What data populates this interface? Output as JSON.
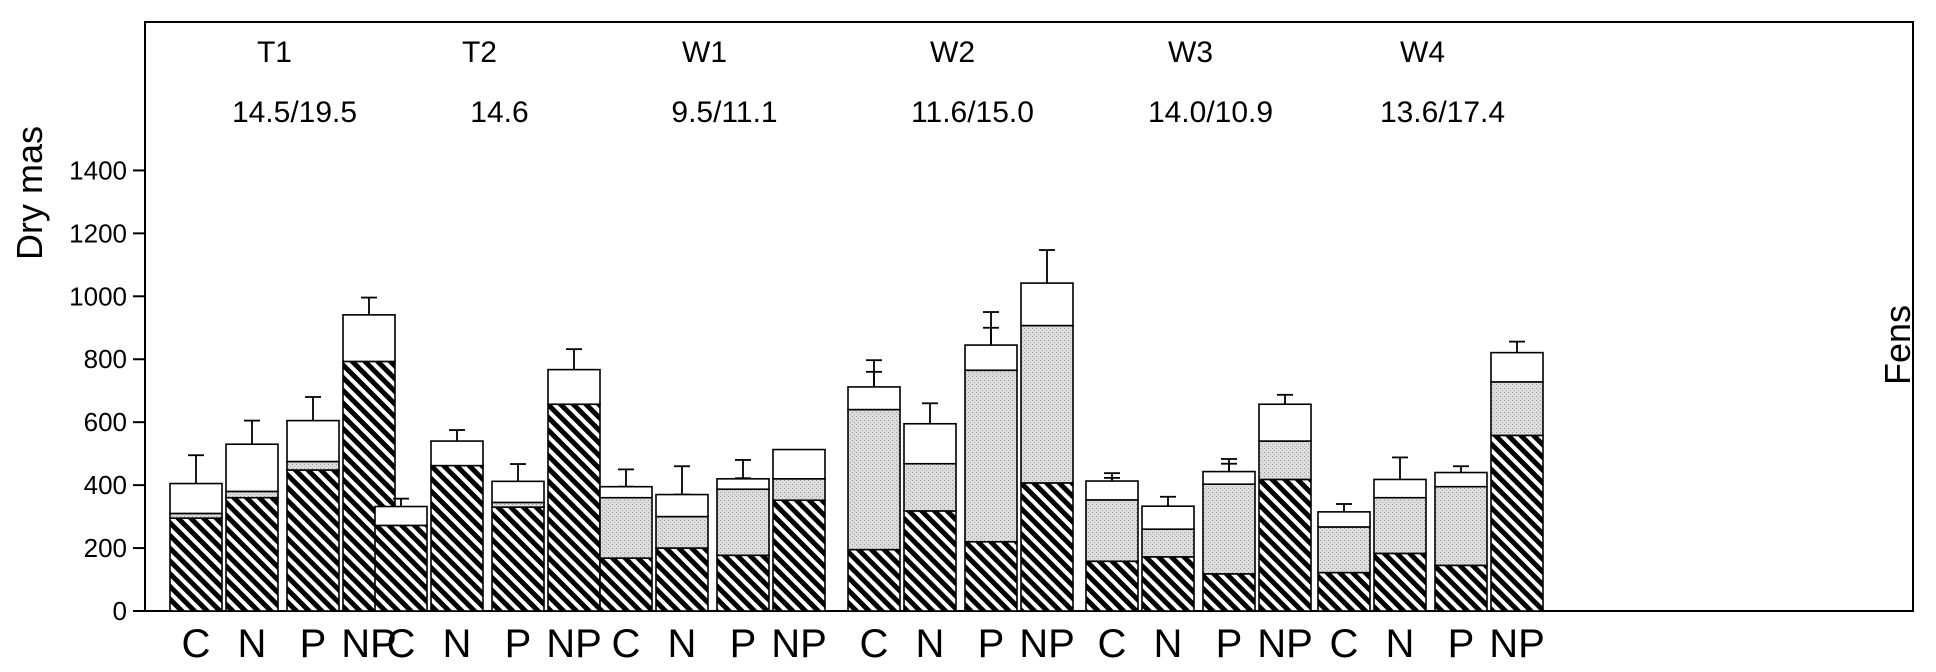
{
  "chart_data": {
    "type": "bar",
    "stacked": true,
    "ylabel": "Dry mas",
    "right_label": "Fens",
    "ylim": [
      0,
      1450
    ],
    "yticks": [
      0,
      200,
      400,
      600,
      800,
      1000,
      1200,
      1400
    ],
    "grid": false,
    "legend": "none",
    "colors": {
      "layer1": "hatched",
      "layer2": "#d4d4d4",
      "layer3": "#ffffff",
      "axis": "#000000"
    },
    "groups": [
      {
        "name": "T1",
        "subtitle": "14.5/19.5",
        "categories": [
          "C",
          "N",
          "P",
          "NP"
        ],
        "bars": [
          {
            "layers": [
              295,
              15,
              95
            ],
            "errors": [
              70,
              0,
              90
            ]
          },
          {
            "layers": [
              360,
              20,
              150
            ],
            "errors": [
              65,
              0,
              75
            ]
          },
          {
            "layers": [
              448,
              27,
              130
            ],
            "errors": [
              55,
              0,
              75
            ]
          },
          {
            "layers": [
              793,
              0,
              148
            ],
            "errors": [
              45,
              0,
              55
            ]
          }
        ]
      },
      {
        "name": "T2",
        "subtitle": "14.6",
        "categories": [
          "C",
          "N",
          "P",
          "NP"
        ],
        "bars": [
          {
            "layers": [
              272,
              0,
              60
            ],
            "errors": [
              25,
              0,
              25
            ]
          },
          {
            "layers": [
              462,
              0,
              78
            ],
            "errors": [
              38,
              0,
              35
            ]
          },
          {
            "layers": [
              330,
              15,
              67
            ],
            "errors": [
              40,
              0,
              55
            ]
          },
          {
            "layers": [
              657,
              0,
              110
            ],
            "errors": [
              55,
              0,
              65
            ]
          }
        ]
      },
      {
        "name": "W1",
        "subtitle": "9.5/11.1",
        "categories": [
          "C",
          "N",
          "P",
          "NP"
        ],
        "bars": [
          {
            "layers": [
              168,
              192,
              35
            ],
            "errors": [
              25,
              35,
              55
            ]
          },
          {
            "layers": [
              200,
              100,
              70
            ],
            "errors": [
              20,
              70,
              90
            ]
          },
          {
            "layers": [
              177,
              210,
              33
            ],
            "errors": [
              25,
              35,
              60
            ]
          },
          {
            "layers": [
              352,
              68,
              93
            ],
            "errors": [
              15,
              20,
              0
            ]
          }
        ]
      },
      {
        "name": "W2",
        "subtitle": "11.6/15.0",
        "categories": [
          "C",
          "N",
          "P",
          "NP"
        ],
        "bars": [
          {
            "layers": [
              195,
              445,
              72
            ],
            "errors": [
              45,
              120,
              85
            ]
          },
          {
            "layers": [
              318,
              150,
              127
            ],
            "errors": [
              30,
              40,
              65
            ]
          },
          {
            "layers": [
              220,
              545,
              80
            ],
            "errors": [
              25,
              135,
              105
            ]
          },
          {
            "layers": [
              407,
              500,
              135
            ],
            "errors": [
              70,
              115,
              105
            ]
          }
        ]
      },
      {
        "name": "W3",
        "subtitle": "14.0/10.9",
        "categories": [
          "C",
          "N",
          "P",
          "NP"
        ],
        "bars": [
          {
            "layers": [
              158,
              195,
              60
            ],
            "errors": [
              10,
              70,
              25
            ]
          },
          {
            "layers": [
              172,
              88,
              73
            ],
            "errors": [
              10,
              30,
              30
            ]
          },
          {
            "layers": [
              118,
              285,
              40
            ],
            "errors": [
              10,
              65,
              40
            ]
          },
          {
            "layers": [
              418,
              122,
              117
            ],
            "errors": [
              20,
              65,
              30
            ]
          }
        ]
      },
      {
        "name": "W4",
        "subtitle": "13.6/17.4",
        "categories": [
          "C",
          "N",
          "P",
          "NP"
        ],
        "bars": [
          {
            "layers": [
              122,
              145,
              48
            ],
            "errors": [
              15,
              30,
              25
            ]
          },
          {
            "layers": [
              183,
              177,
              58
            ],
            "errors": [
              40,
              40,
              70
            ]
          },
          {
            "layers": [
              145,
              250,
              45
            ],
            "errors": [
              10,
              30,
              20
            ]
          },
          {
            "layers": [
              558,
              170,
              93
            ],
            "errors": [
              30,
              55,
              35
            ]
          }
        ]
      }
    ]
  }
}
